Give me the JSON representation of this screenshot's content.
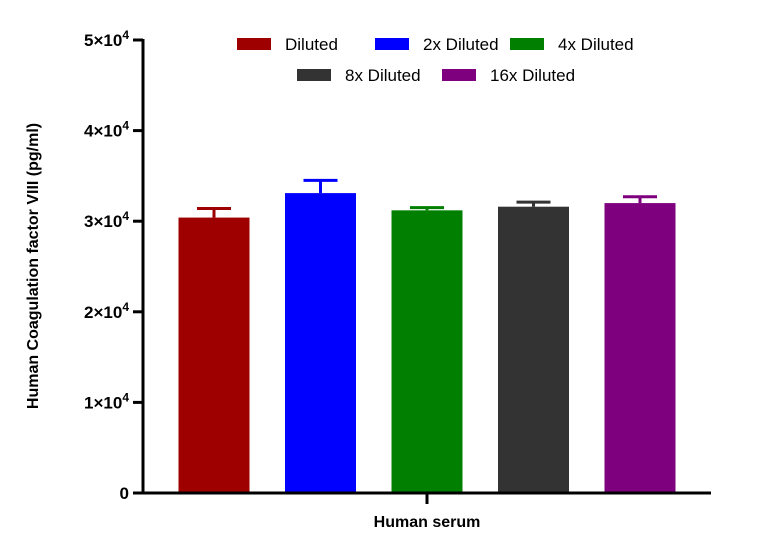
{
  "chart_data": {
    "type": "bar",
    "xlabel": "Human serum",
    "ylabel": "Human Coagulation factor VIII (pg/ml)",
    "ylim": [
      0,
      50000
    ],
    "yticks": [
      {
        "value": 0,
        "mantissa": "0",
        "exp": ""
      },
      {
        "value": 10000,
        "mantissa": "1×10",
        "exp": "4"
      },
      {
        "value": 20000,
        "mantissa": "2×10",
        "exp": "4"
      },
      {
        "value": 30000,
        "mantissa": "3×10",
        "exp": "4"
      },
      {
        "value": 40000,
        "mantissa": "4×10",
        "exp": "4"
      },
      {
        "value": 50000,
        "mantissa": "5×10",
        "exp": "4"
      }
    ],
    "legend_position": "top",
    "series": [
      {
        "name": "Diluted",
        "value": 30400,
        "error": 1000,
        "color": "#9e0000"
      },
      {
        "name": "2x Diluted",
        "value": 33100,
        "error": 1400,
        "color": "#0000ff"
      },
      {
        "name": "4x Diluted",
        "value": 31200,
        "error": 300,
        "color": "#007f00"
      },
      {
        "name": "8x Diluted",
        "value": 31600,
        "error": 500,
        "color": "#333333"
      },
      {
        "name": "16x Diluted",
        "value": 32000,
        "error": 700,
        "color": "#7f007f"
      }
    ]
  }
}
